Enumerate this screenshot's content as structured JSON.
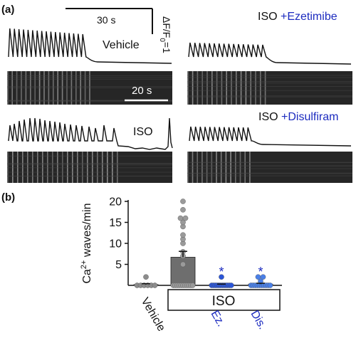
{
  "panel_a": {
    "label": "(a)",
    "time_scale_top": "30 s",
    "amplitude_scale": "ΔF/F",
    "amplitude_sub": "0",
    "amplitude_value": "=1",
    "time_scale_linescan": "20 s",
    "traces": [
      {
        "id": "vehicle",
        "label": "Vehicle",
        "label_prefix": "",
        "label_suffix": "Vehicle",
        "suffix_color": "#111111"
      },
      {
        "id": "iso-ezetimibe",
        "label": "ISO +Ezetimibe",
        "label_prefix": "ISO",
        "label_suffix": "+Ezetimibe",
        "suffix_color": "#1c2bbf"
      },
      {
        "id": "iso",
        "label": "ISO",
        "label_prefix": "",
        "label_suffix": "ISO",
        "suffix_color": "#111111"
      },
      {
        "id": "iso-disulfiram",
        "label": "ISO +Disulfiram",
        "label_prefix": "ISO",
        "label_suffix": "+Disulfiram",
        "suffix_color": "#1c2bbf"
      }
    ]
  },
  "chart_data": {
    "type": "bar",
    "panel_label": "(b)",
    "ylabel_pre": "Ca",
    "ylabel_sup": "2+",
    "ylabel_post": " waves/min",
    "ylim": [
      0,
      20
    ],
    "yticks": [
      5,
      10,
      15,
      20
    ],
    "categories": [
      "Vehicle",
      "",
      "Ez.",
      "Dis."
    ],
    "category_colors": [
      "#111111",
      "#111111",
      "#1c2bbf",
      "#1c2bbf"
    ],
    "group_label": "ISO",
    "values": [
      0.2,
      6.7,
      0.2,
      0.3
    ],
    "sem": [
      0.2,
      1.4,
      0.1,
      0.2
    ],
    "significance": [
      "",
      "",
      "*",
      "*"
    ],
    "bar_colors": [
      "#9a9a9a",
      "#6e6e6e",
      "#3a6fe0",
      "#3a6fe0"
    ],
    "point_colors": [
      "#8c8c8c",
      "#9a9a9a",
      "#2a55d8",
      "#4a80e8"
    ],
    "points": [
      [
        0,
        0,
        0,
        0,
        0,
        0,
        2
      ],
      [
        0,
        0,
        0,
        0,
        0,
        0,
        0,
        0,
        0,
        0,
        0,
        5,
        7,
        8,
        10,
        11,
        12,
        14,
        15,
        16,
        16,
        18,
        20
      ],
      [
        0,
        0,
        0,
        0,
        0,
        0,
        0,
        0,
        0,
        0,
        0,
        0,
        2
      ],
      [
        0,
        0,
        0,
        0,
        0,
        0,
        0,
        0,
        0,
        0,
        1,
        2,
        2
      ]
    ]
  }
}
